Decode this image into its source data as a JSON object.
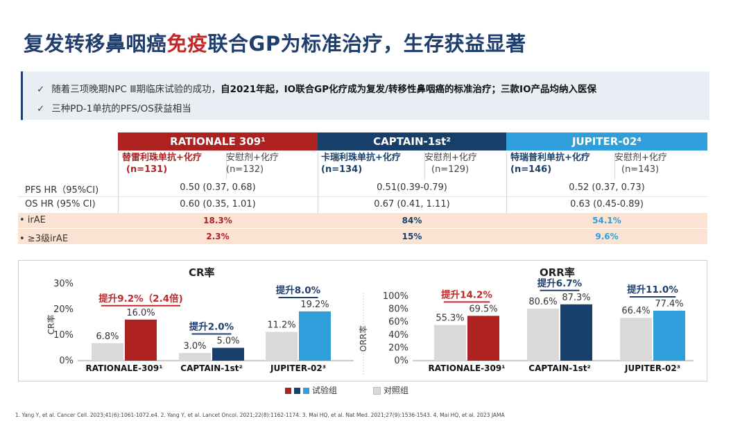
{
  "title": {
    "pre": "复发转移鼻咽癌",
    "highlight": "免疫",
    "post": "联合GP为标准治疗，生存获益显著"
  },
  "bullets": {
    "b1_pre": "随着三项晚期NPC Ⅲ期临床试验的成功，",
    "b1_bold": "自2021年起，IO联合GP化疗成为复发/转移性鼻咽癌的标准治疗；三款IO产品均纳入医保",
    "b2": "三种PD-1单抗的PFS/OS获益相当",
    "check": "✓"
  },
  "table": {
    "headers": [
      "RATIONALE 309¹",
      "CAPTAIN-1st²",
      "JUPITER-02⁴"
    ],
    "subheaders": [
      {
        "trt_name": "替雷利珠单抗+化疗",
        "trt_n": "(n=131)",
        "ctl_name": "安慰剂+化疗",
        "ctl_n": "(n=132)"
      },
      {
        "trt_name": "卡瑞利珠单抗+化疗",
        "trt_n": "(n=134)",
        "ctl_name": "安慰剂+化疗",
        "ctl_n": "(n=129)"
      },
      {
        "trt_name": "特瑞普利单抗+化疗",
        "trt_n": "(n=146)",
        "ctl_name": "安慰剂+化疗",
        "ctl_n": "(n=143)"
      }
    ],
    "rows": [
      {
        "label": "PFS HR（95%CI)",
        "values": [
          "0.50 (0.37, 0.68)",
          "0.51(0.39-0.79)",
          "0.52 (0.37, 0.73)"
        ]
      },
      {
        "label": "OS  HR (95% CI)",
        "values": [
          "0.60 (0.35, 1.01)",
          "0.67 (0.41, 1.11)",
          "0.63 (0.45-0.89)"
        ]
      },
      {
        "label": "•  irAE",
        "values": [
          "18.3%",
          "84%",
          "54.1%"
        ]
      },
      {
        "label": "•  ≥3级irAE",
        "values": [
          "2.3%",
          "15%",
          "9.6%"
        ]
      }
    ]
  },
  "chart_data": [
    {
      "type": "bar",
      "title": "CR率",
      "ylabel": "CR率",
      "ylim": [
        0,
        30
      ],
      "yticks": [
        "0%",
        "10%",
        "20%",
        "30%"
      ],
      "categories": [
        "RATIONALE-309¹",
        "CAPTAIN-1st²",
        "JUPITER-02³"
      ],
      "series": [
        {
          "name": "对照组",
          "values": [
            6.8,
            3.0,
            11.2
          ],
          "labels": [
            "6.8%",
            "3.0%",
            "11.2%"
          ]
        },
        {
          "name": "试验组",
          "values": [
            16.0,
            5.0,
            19.2
          ],
          "labels": [
            "16.0%",
            "5.0%",
            "19.2%"
          ]
        }
      ],
      "annotations": [
        "提升9.2%（2.4倍)",
        "提升2.0%",
        "提升8.0%"
      ]
    },
    {
      "type": "bar",
      "title": "ORR率",
      "ylabel": "ORR率",
      "ylim": [
        0,
        100
      ],
      "yticks": [
        "0%",
        "20%",
        "40%",
        "60%",
        "80%",
        "100%"
      ],
      "categories": [
        "RATIONALE-309¹",
        "CAPTAIN-1st²",
        "JUPITER-02³"
      ],
      "series": [
        {
          "name": "对照组",
          "values": [
            55.3,
            80.6,
            66.4
          ],
          "labels": [
            "55.3%",
            "80.6%",
            "66.4%"
          ]
        },
        {
          "name": "试验组",
          "values": [
            69.5,
            87.3,
            77.4
          ],
          "labels": [
            "69.5%",
            "87.3%",
            "77.4%"
          ]
        }
      ],
      "annotations": [
        "提升14.2%",
        "提升6.7%",
        "提升11.0%"
      ]
    }
  ],
  "colors": {
    "rationale": "#ad2120",
    "captain": "#183e6a",
    "jupiter": "#2e9fda",
    "control": "#d9d9d9",
    "title": "#1f3e6e"
  },
  "legend": {
    "trt": "试验组",
    "ctl": "对照组"
  },
  "footnote": "1. Yang Y, et al. Cancer Cell. 2023;41(6):1061-1072.e4. 2. Yang Y, et al. Lancet Oncol. 2021;22(8):1162-1174. 3. Mai HQ, et al. Nat Med. 2021;27(9):1536-1543. 4. Mai HQ, et al.  2023 JAMA"
}
